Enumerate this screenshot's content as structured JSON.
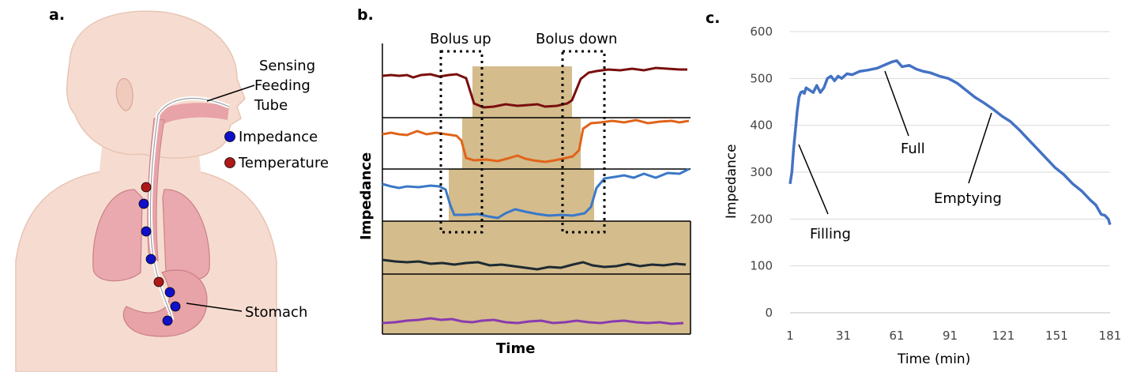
{
  "panels": {
    "a": {
      "label": "a.",
      "labels": {
        "sensing": "Sensing",
        "feeding": "Feeding",
        "tube": "Tube",
        "impedance": "Impedance",
        "temperature": "Temperature",
        "stomach": "Stomach"
      },
      "colors": {
        "impedance_dot": "#1010c8",
        "temperature_dot": "#b01818",
        "skin": "#f6dcd0",
        "organ": "#e7a3a8"
      }
    },
    "b": {
      "label": "b.",
      "bolus_up": "Bolus up",
      "bolus_down": "Bolus down",
      "ylabel": "Impedance",
      "xlabel": "Time",
      "colors": {
        "bolus": "#d4bc8c",
        "trace1": "#7a0e0e",
        "trace2": "#e0641a",
        "trace3": "#3a78c8",
        "trace4": "#1e2a33",
        "trace5": "#8a3ab0"
      }
    },
    "c": {
      "label": "c.",
      "annotations": {
        "full": "Full",
        "filling": "Filling",
        "emptying": "Emptying"
      }
    }
  },
  "chart_data": {
    "type": "line",
    "title": "",
    "xlabel": "Time (min)",
    "ylabel": "Impedance",
    "xlim": [
      1,
      181
    ],
    "ylim": [
      0,
      600
    ],
    "xticks": [
      1,
      31,
      61,
      91,
      121,
      151,
      181
    ],
    "yticks": [
      0,
      100,
      200,
      300,
      400,
      500,
      600
    ],
    "grid": "horizontal",
    "series": [
      {
        "color": "#4472c4",
        "x": [
          1,
          2,
          3,
          4,
          5,
          6,
          7,
          8,
          9,
          10,
          12,
          14,
          16,
          18,
          20,
          22,
          24,
          26,
          28,
          30,
          33,
          36,
          40,
          45,
          50,
          55,
          58,
          61,
          64,
          68,
          72,
          76,
          80,
          85,
          90,
          95,
          100,
          105,
          110,
          115,
          120,
          125,
          130,
          135,
          140,
          145,
          150,
          155,
          160,
          165,
          170,
          173,
          176,
          178,
          180,
          181
        ],
        "y": [
          275,
          300,
          350,
          390,
          430,
          460,
          470,
          472,
          468,
          480,
          475,
          470,
          485,
          470,
          480,
          500,
          505,
          495,
          505,
          500,
          510,
          508,
          515,
          518,
          522,
          530,
          535,
          538,
          525,
          528,
          520,
          515,
          512,
          505,
          500,
          490,
          475,
          460,
          448,
          435,
          420,
          408,
          390,
          370,
          350,
          330,
          310,
          295,
          275,
          260,
          240,
          230,
          210,
          208,
          200,
          188
        ]
      }
    ]
  }
}
